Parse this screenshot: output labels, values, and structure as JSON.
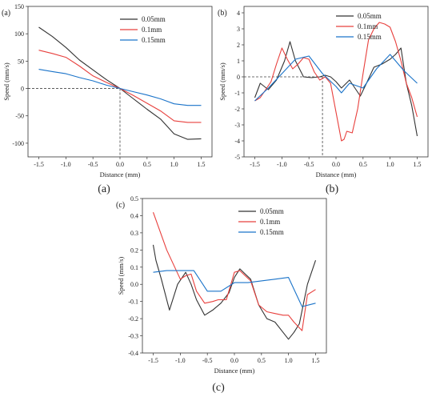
{
  "chart_data": [
    {
      "id": "a",
      "panel_label": "(a)",
      "caption": "(a)",
      "type": "line",
      "xlabel": "Distance (mm)",
      "ylabel": "Speed (mm/s)",
      "xlim": [
        -1.7,
        1.7
      ],
      "ylim": [
        -125,
        150
      ],
      "xticks": [
        -1.5,
        -1.0,
        -0.5,
        0.0,
        0.5,
        1.0,
        1.5
      ],
      "xtick_labels": [
        "-1.5",
        "-1.0",
        "-0.5",
        "0.0",
        "0.5",
        "1.0",
        "1.5"
      ],
      "yticks": [
        -100,
        -50,
        0,
        50,
        100,
        150
      ],
      "ytick_labels": [
        "-100",
        "-50",
        "0",
        "50",
        "100",
        "150"
      ],
      "legend_position": "top-right",
      "ref_lines": {
        "x": 0,
        "y": 0
      },
      "series": [
        {
          "name": "0.05mm",
          "color": "#333333",
          "x": [
            -1.5,
            -1.25,
            -1.0,
            -0.75,
            -0.5,
            -0.25,
            0.0,
            0.25,
            0.5,
            0.75,
            1.0,
            1.25,
            1.5
          ],
          "y": [
            112,
            95,
            75,
            52,
            34,
            16,
            0,
            -19,
            -38,
            -56,
            -83,
            -93,
            -92
          ]
        },
        {
          "name": "0.1mm",
          "color": "#e8403d",
          "x": [
            -1.5,
            -1.25,
            -1.0,
            -0.75,
            -0.5,
            -0.25,
            0.0,
            0.25,
            0.5,
            0.75,
            1.0,
            1.25,
            1.5
          ],
          "y": [
            70,
            64,
            57,
            41,
            23,
            11,
            0,
            -13,
            -27,
            -41,
            -59,
            -62,
            -62
          ]
        },
        {
          "name": "0.15mm",
          "color": "#1a73c9",
          "x": [
            -1.5,
            -1.25,
            -1.0,
            -0.75,
            -0.5,
            -0.25,
            0.0,
            0.25,
            0.5,
            0.75,
            1.0,
            1.25,
            1.5
          ],
          "y": [
            35,
            31,
            27,
            20,
            14,
            6,
            0,
            -6,
            -12,
            -19,
            -28,
            -31,
            -31
          ]
        }
      ]
    },
    {
      "id": "b",
      "panel_label": "(b)",
      "caption": "(b)",
      "type": "line",
      "xlabel": "Distance (mm)",
      "ylabel": "Speed (mm/s)",
      "xlim": [
        -1.7,
        1.7
      ],
      "ylim": [
        -5,
        4.4
      ],
      "xticks": [
        -1.5,
        -1.0,
        -0.5,
        0.0,
        0.5,
        1.0,
        1.5
      ],
      "xtick_labels": [
        "-1.5",
        "-1.0",
        "-0.5",
        "0.0",
        "0.5",
        "1.0",
        "1.5"
      ],
      "yticks": [
        -5,
        -4,
        -3,
        -2,
        -1,
        0,
        1,
        2,
        3,
        4
      ],
      "ytick_labels": [
        "-5",
        "-4",
        "-3",
        "-2",
        "-1",
        "0",
        "1",
        "2",
        "3",
        "4"
      ],
      "legend_position": "top-right",
      "ref_lines": {
        "x": -0.25,
        "y": 0
      },
      "series": [
        {
          "name": "0.05mm",
          "color": "#333333",
          "x": [
            -1.5,
            -1.4,
            -1.25,
            -1.1,
            -0.95,
            -0.85,
            -0.75,
            -0.6,
            -0.45,
            -0.3,
            -0.2,
            -0.1,
            0.0,
            0.1,
            0.25,
            0.45,
            0.55,
            0.7,
            0.85,
            1.0,
            1.1,
            1.2,
            1.3,
            1.4,
            1.5
          ],
          "y": [
            -1.3,
            -0.4,
            -0.8,
            -0.2,
            1.0,
            2.2,
            1.0,
            0.0,
            -0.05,
            0.0,
            0.1,
            0.0,
            -0.3,
            -0.7,
            -0.2,
            -1.2,
            -0.5,
            0.6,
            0.8,
            1.1,
            1.4,
            1.8,
            -0.4,
            -1.8,
            -3.7
          ]
        },
        {
          "name": "0.1mm",
          "color": "#e8403d",
          "x": [
            -1.5,
            -1.4,
            -1.3,
            -1.2,
            -1.1,
            -1.0,
            -0.9,
            -0.8,
            -0.7,
            -0.6,
            -0.5,
            -0.4,
            -0.3,
            -0.2,
            -0.1,
            0.0,
            0.1,
            0.15,
            0.2,
            0.3,
            0.4,
            0.5,
            0.6,
            0.7,
            0.8,
            0.9,
            1.0,
            1.1,
            1.2,
            1.3,
            1.4,
            1.5
          ],
          "y": [
            -1.5,
            -1.3,
            -0.8,
            -0.3,
            0.8,
            1.8,
            1.1,
            0.5,
            0.8,
            1.2,
            1.1,
            0.3,
            -0.2,
            0.0,
            -0.4,
            -2.2,
            -4.0,
            -3.9,
            -3.4,
            -3.5,
            -2.0,
            0.2,
            2.3,
            3.0,
            3.4,
            3.3,
            3.1,
            2.2,
            1.0,
            -0.4,
            -1.3,
            -2.5
          ]
        },
        {
          "name": "0.15mm",
          "color": "#1a73c9",
          "x": [
            -1.5,
            -1.25,
            -1.0,
            -0.75,
            -0.5,
            -0.25,
            0.0,
            0.1,
            0.25,
            0.5,
            0.75,
            1.0,
            1.25,
            1.5
          ],
          "y": [
            -1.5,
            -0.7,
            0.2,
            1.1,
            1.3,
            0.2,
            -0.6,
            -1.0,
            -0.4,
            -0.7,
            0.5,
            1.4,
            0.4,
            -0.4
          ]
        }
      ]
    },
    {
      "id": "c",
      "panel_label": "(c)",
      "caption": "(c)",
      "type": "line",
      "xlabel": "Distance (mm)",
      "ylabel": "Speed (mm/s)",
      "xlim": [
        -1.7,
        1.7
      ],
      "ylim": [
        -0.4,
        0.5
      ],
      "xticks": [
        -1.5,
        -1.0,
        -0.5,
        0.0,
        0.5,
        1.0,
        1.5
      ],
      "xtick_labels": [
        "-1.5",
        "-1.0",
        "-0.5",
        "0.0",
        "0.5",
        "1.0",
        "1.5"
      ],
      "yticks": [
        -0.4,
        -0.3,
        -0.2,
        -0.1,
        0.0,
        0.1,
        0.2,
        0.3,
        0.4,
        0.5
      ],
      "ytick_labels": [
        "-0.4",
        "-0.3",
        "-0.2",
        "-0.1",
        "0.0",
        "0.1",
        "0.2",
        "0.3",
        "0.4",
        "0.5"
      ],
      "legend_position": "top-right",
      "series": [
        {
          "name": "0.05mm",
          "color": "#333333",
          "x": [
            -1.5,
            -1.45,
            -1.35,
            -1.2,
            -1.05,
            -0.9,
            -0.8,
            -0.7,
            -0.55,
            -0.4,
            -0.25,
            -0.1,
            0.0,
            0.1,
            0.2,
            0.3,
            0.45,
            0.6,
            0.75,
            0.9,
            1.0,
            1.1,
            1.2,
            1.35,
            1.5
          ],
          "y": [
            0.23,
            0.14,
            0.03,
            -0.15,
            0.0,
            0.07,
            0.0,
            -0.09,
            -0.18,
            -0.15,
            -0.11,
            -0.05,
            0.04,
            0.09,
            0.06,
            0.03,
            -0.12,
            -0.2,
            -0.22,
            -0.28,
            -0.32,
            -0.28,
            -0.23,
            0.0,
            0.14
          ]
        },
        {
          "name": "0.1mm",
          "color": "#e8403d",
          "x": [
            -1.5,
            -1.25,
            -1.0,
            -0.9,
            -0.8,
            -0.7,
            -0.55,
            -0.4,
            -0.3,
            -0.15,
            0.0,
            0.1,
            0.2,
            0.3,
            0.45,
            0.6,
            0.75,
            0.9,
            1.0,
            1.1,
            1.25,
            1.35,
            1.5
          ],
          "y": [
            0.42,
            0.2,
            0.03,
            0.05,
            0.06,
            -0.04,
            -0.11,
            -0.1,
            -0.09,
            -0.09,
            0.07,
            0.08,
            0.05,
            0.02,
            -0.12,
            -0.16,
            -0.17,
            -0.18,
            -0.18,
            -0.22,
            -0.27,
            -0.06,
            -0.03
          ]
        },
        {
          "name": "0.15mm",
          "color": "#1a73c9",
          "x": [
            -1.5,
            -1.25,
            -1.0,
            -0.75,
            -0.5,
            -0.25,
            0.0,
            0.25,
            0.5,
            0.75,
            1.0,
            1.25,
            1.5
          ],
          "y": [
            0.07,
            0.08,
            0.08,
            0.08,
            -0.04,
            -0.04,
            0.01,
            0.01,
            0.02,
            0.03,
            0.04,
            -0.13,
            -0.11
          ]
        }
      ]
    }
  ]
}
